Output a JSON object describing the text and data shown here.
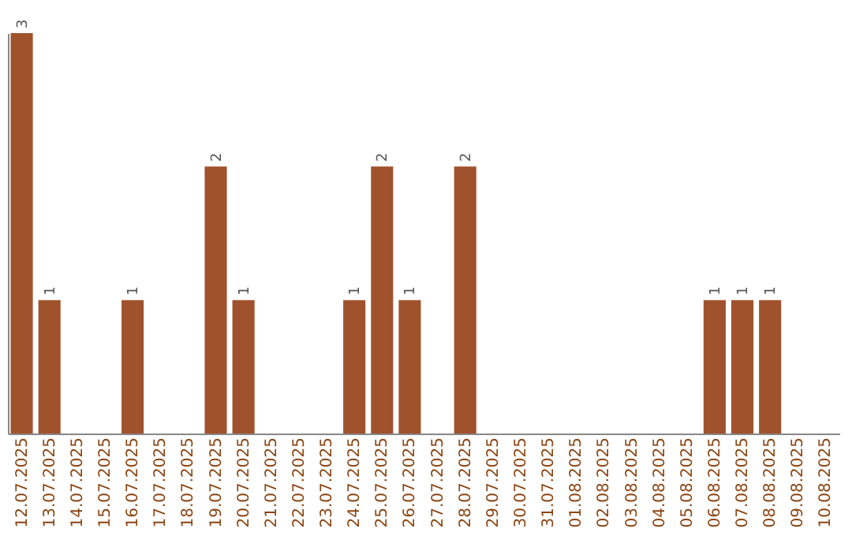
{
  "chart_data": {
    "type": "bar",
    "categories": [
      "12.07.2025",
      "13.07.2025",
      "14.07.2025",
      "15.07.2025",
      "16.07.2025",
      "17.07.2025",
      "18.07.2025",
      "19.07.2025",
      "20.07.2025",
      "21.07.2025",
      "22.07.2025",
      "23.07.2025",
      "24.07.2025",
      "25.07.2025",
      "26.07.2025",
      "27.07.2025",
      "28.07.2025",
      "29.07.2025",
      "30.07.2025",
      "31.07.2025",
      "01.08.2025",
      "02.08.2025",
      "03.08.2025",
      "04.08.2025",
      "05.08.2025",
      "06.08.2025",
      "07.08.2025",
      "08.08.2025",
      "09.08.2025",
      "10.08.2025"
    ],
    "values": [
      3,
      1,
      0,
      0,
      1,
      0,
      0,
      2,
      1,
      0,
      0,
      0,
      1,
      2,
      1,
      0,
      2,
      0,
      0,
      0,
      0,
      0,
      0,
      0,
      0,
      1,
      1,
      1,
      0,
      0
    ],
    "value_labels": [
      "3",
      "1",
      null,
      null,
      "1",
      null,
      null,
      "2",
      "1",
      null,
      null,
      null,
      "1",
      "2",
      "1",
      null,
      "2",
      null,
      null,
      null,
      null,
      null,
      null,
      null,
      null,
      "1",
      "1",
      "1",
      null,
      null
    ],
    "color": "#a0522d",
    "ylim": [
      0,
      3
    ],
    "tick_labels": "x",
    "grid": false
  }
}
